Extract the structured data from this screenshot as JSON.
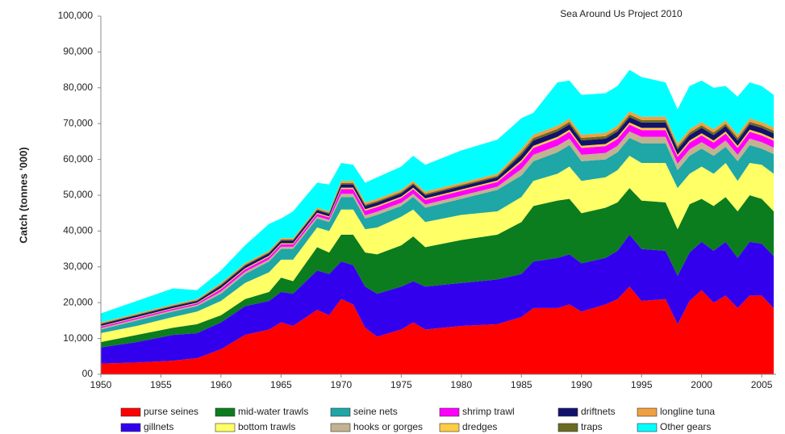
{
  "chart_data": {
    "type": "stacked_area",
    "y_label": "Catch (tonnes '000)",
    "annotation": "Sea Around Us Project 2010",
    "x": [
      1950,
      1953,
      1956,
      1958,
      1960,
      1962,
      1964,
      1965,
      1966,
      1968,
      1969,
      1970,
      1971,
      1972,
      1973,
      1975,
      1976,
      1977,
      1980,
      1983,
      1985,
      1986,
      1988,
      1989,
      1990,
      1992,
      1993,
      1994,
      1995,
      1997,
      1998,
      1999,
      2000,
      2001,
      2002,
      2003,
      2004,
      2005,
      2006
    ],
    "xlim": [
      1950,
      2006
    ],
    "xticks": [
      1950,
      1955,
      1960,
      1965,
      1970,
      1975,
      1980,
      1985,
      1990,
      1995,
      2000,
      2005
    ],
    "ylim": [
      0,
      100000
    ],
    "yticks": [
      {
        "value": 0,
        "label": "00"
      },
      {
        "value": 10000,
        "label": "10,000"
      },
      {
        "value": 20000,
        "label": "20,000"
      },
      {
        "value": 30000,
        "label": "30,000"
      },
      {
        "value": 40000,
        "label": "40,000"
      },
      {
        "value": 50000,
        "label": "50,000"
      },
      {
        "value": 60000,
        "label": "60,000"
      },
      {
        "value": 70000,
        "label": "70,000"
      },
      {
        "value": 80000,
        "label": "80,000"
      },
      {
        "value": 90000,
        "label": "90,000"
      },
      {
        "value": 100000,
        "label": "100,000"
      }
    ],
    "grid": false,
    "series": [
      {
        "name": "purse seines",
        "color": "#ff0000",
        "values": [
          3000,
          3300,
          3800,
          4500,
          7000,
          11000,
          12500,
          14500,
          13500,
          18000,
          16500,
          21000,
          19500,
          13000,
          10500,
          12500,
          14500,
          12500,
          13500,
          14000,
          16000,
          18500,
          18500,
          19500,
          17500,
          19500,
          21000,
          24500,
          20500,
          21000,
          14000,
          20500,
          23500,
          20000,
          22000,
          18500,
          22000,
          22000,
          18500
        ]
      },
      {
        "name": "gillnets",
        "color": "#3300ee",
        "values": [
          4500,
          5700,
          7200,
          7000,
          7500,
          8000,
          8000,
          8500,
          9000,
          11000,
          11500,
          10500,
          11000,
          11500,
          12000,
          12000,
          11500,
          12000,
          12000,
          12500,
          12000,
          13000,
          14000,
          14000,
          13500,
          13000,
          13500,
          14500,
          14500,
          13500,
          13500,
          13500,
          13500,
          14500,
          15000,
          14000,
          15000,
          14500,
          14500
        ]
      },
      {
        "name": "mid-water trawls",
        "color": "#0b7d1e",
        "values": [
          1500,
          2000,
          2000,
          2500,
          2000,
          2000,
          2500,
          4000,
          3500,
          6500,
          6000,
          7500,
          8500,
          9500,
          11000,
          11500,
          12500,
          11000,
          12000,
          12500,
          14500,
          15500,
          16000,
          15500,
          14000,
          14000,
          13500,
          13000,
          13500,
          13500,
          13000,
          13500,
          12000,
          12500,
          12500,
          13000,
          13000,
          12500,
          12500
        ]
      },
      {
        "name": "bottom trawls",
        "color": "#ffff66",
        "values": [
          2500,
          2500,
          3000,
          3500,
          4000,
          4500,
          5500,
          5000,
          6000,
          5500,
          6000,
          7000,
          7000,
          6500,
          7500,
          8000,
          7500,
          7000,
          7000,
          6500,
          7000,
          7000,
          7500,
          9000,
          9000,
          8500,
          9000,
          9000,
          10500,
          11000,
          11500,
          8500,
          9000,
          9000,
          9500,
          8500,
          9000,
          9500,
          10500
        ]
      },
      {
        "name": "seine nets",
        "color": "#1fa6a6",
        "values": [
          1000,
          1500,
          1500,
          1500,
          2000,
          2500,
          3000,
          3000,
          3000,
          2500,
          2500,
          3500,
          3500,
          3000,
          3500,
          3000,
          3500,
          4000,
          4500,
          6000,
          6000,
          5500,
          6000,
          6000,
          5500,
          5000,
          5000,
          5000,
          5500,
          5500,
          5000,
          5000,
          5000,
          5000,
          4500,
          5500,
          5000,
          4500,
          5500
        ]
      },
      {
        "name": "hooks or gorges",
        "color": "#c2b290",
        "values": [
          400,
          400,
          400,
          400,
          600,
          600,
          600,
          600,
          600,
          600,
          600,
          900,
          900,
          900,
          900,
          900,
          900,
          900,
          900,
          900,
          1800,
          1800,
          1800,
          1800,
          1800,
          1800,
          1800,
          1800,
          1800,
          1800,
          1800,
          1800,
          1800,
          1800,
          1800,
          1800,
          1800,
          1800,
          1800
        ]
      },
      {
        "name": "shrimp trawl",
        "color": "#ff00ff",
        "values": [
          400,
          400,
          400,
          400,
          700,
          700,
          700,
          700,
          700,
          700,
          700,
          1300,
          1300,
          1300,
          1300,
          1300,
          1300,
          1300,
          1300,
          1300,
          1900,
          1900,
          1900,
          1900,
          1900,
          1900,
          1900,
          1900,
          1900,
          1900,
          1900,
          1900,
          1900,
          1900,
          1900,
          1900,
          1900,
          1900,
          1900
        ]
      },
      {
        "name": "dredges",
        "color": "#ffcc44",
        "values": [
          200,
          200,
          200,
          200,
          300,
          300,
          300,
          300,
          300,
          300,
          300,
          400,
          400,
          400,
          400,
          400,
          400,
          400,
          400,
          400,
          600,
          600,
          600,
          600,
          600,
          600,
          600,
          600,
          600,
          600,
          600,
          600,
          600,
          600,
          600,
          600,
          600,
          600,
          600
        ]
      },
      {
        "name": "driftnets",
        "color": "#12126e",
        "values": [
          500,
          500,
          500,
          500,
          700,
          700,
          700,
          700,
          700,
          700,
          700,
          900,
          900,
          900,
          900,
          900,
          900,
          900,
          900,
          900,
          1500,
          1500,
          1500,
          1500,
          1500,
          1500,
          1500,
          1500,
          1500,
          1500,
          1500,
          1500,
          1500,
          1500,
          1500,
          1500,
          1500,
          1500,
          1500
        ]
      },
      {
        "name": "traps",
        "color": "#6b6b22",
        "values": [
          200,
          200,
          200,
          200,
          300,
          300,
          300,
          300,
          300,
          300,
          300,
          400,
          400,
          400,
          400,
          400,
          400,
          400,
          400,
          400,
          700,
          700,
          700,
          700,
          700,
          700,
          700,
          700,
          700,
          700,
          700,
          700,
          700,
          700,
          700,
          700,
          700,
          700,
          700
        ]
      },
      {
        "name": "longline tuna",
        "color": "#f0a040",
        "values": [
          300,
          300,
          300,
          300,
          400,
          400,
          400,
          400,
          400,
          400,
          400,
          600,
          600,
          600,
          600,
          600,
          600,
          600,
          600,
          600,
          900,
          900,
          900,
          900,
          900,
          900,
          900,
          900,
          900,
          900,
          900,
          900,
          900,
          900,
          900,
          900,
          900,
          900,
          900
        ]
      },
      {
        "name": "Other gears",
        "color": "#00ffff",
        "values": [
          2500,
          3500,
          4500,
          2500,
          3500,
          5000,
          7500,
          5500,
          7500,
          7000,
          7500,
          5000,
          4500,
          5500,
          6000,
          6500,
          7000,
          7500,
          9000,
          9500,
          8600,
          6100,
          12100,
          10600,
          11100,
          11100,
          11100,
          11600,
          11100,
          9600,
          9600,
          12100,
          11600,
          11600,
          9600,
          10600,
          10100,
          10100,
          9100
        ]
      }
    ]
  }
}
